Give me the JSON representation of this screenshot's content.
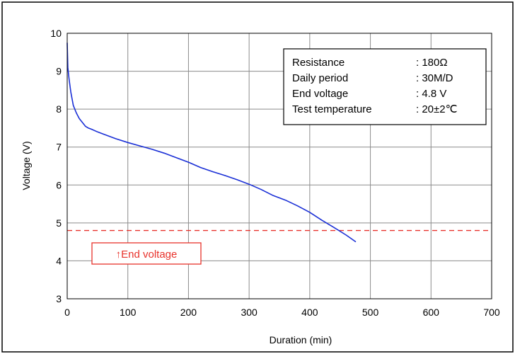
{
  "chart_data": {
    "type": "line",
    "title": "",
    "xlabel": "Duration (min)",
    "ylabel": "Voltage (V)",
    "xlim": [
      0,
      700
    ],
    "ylim": [
      3,
      10
    ],
    "xticks": [
      0,
      100,
      200,
      300,
      400,
      500,
      600,
      700
    ],
    "yticks": [
      3,
      4,
      5,
      6,
      7,
      8,
      9,
      10
    ],
    "grid": true,
    "legend": "none",
    "series": [
      {
        "color": "#1a2fd6",
        "x": [
          0,
          1,
          3,
          6,
          10,
          15,
          20,
          25,
          30,
          35,
          40,
          50,
          60,
          80,
          100,
          120,
          140,
          160,
          180,
          200,
          220,
          240,
          260,
          280,
          300,
          320,
          340,
          360,
          380,
          400,
          420,
          440,
          460,
          476
        ],
        "y": [
          9.75,
          9.1,
          8.8,
          8.45,
          8.1,
          7.9,
          7.75,
          7.65,
          7.55,
          7.5,
          7.47,
          7.4,
          7.34,
          7.22,
          7.12,
          7.03,
          6.94,
          6.84,
          6.72,
          6.6,
          6.46,
          6.35,
          6.25,
          6.14,
          6.02,
          5.88,
          5.72,
          5.6,
          5.45,
          5.28,
          5.07,
          4.88,
          4.68,
          4.5
        ]
      }
    ],
    "reference_line": {
      "y": 4.8,
      "color": "#e8322b",
      "style": "dashed"
    },
    "annotation": {
      "text": "↑End voltage",
      "color": "#e8322b"
    },
    "info_box": [
      {
        "label": "Resistance",
        "value": ": 180Ω"
      },
      {
        "label": "Daily period",
        "value": ": 30M/D"
      },
      {
        "label": "End voltage",
        "value": ": 4.8 V"
      },
      {
        "label": "Test temperature",
        "value": ": 20±2℃"
      }
    ]
  }
}
